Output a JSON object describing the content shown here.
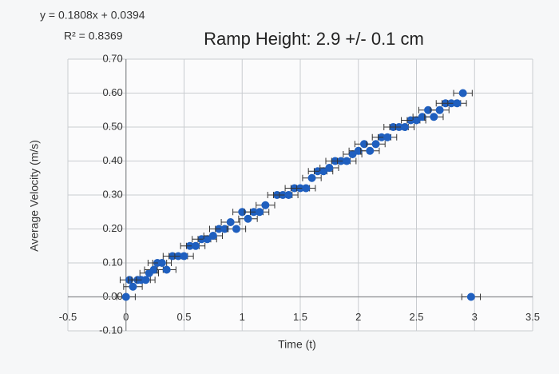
{
  "chart_data": {
    "type": "scatter",
    "title": "Ramp Height: 2.9 +/-  0.1 cm",
    "annotations": [
      "y = 0.1808x + 0.0394",
      "R² = 0.8369"
    ],
    "x_label": "Time (t)",
    "y_label": "Average Velocity (m/s)",
    "x": [
      0,
      0.03,
      0.06,
      0.1,
      0.13,
      0.17,
      0.2,
      0.24,
      0.27,
      0.31,
      0.35,
      0.4,
      0.45,
      0.5,
      0.55,
      0.6,
      0.65,
      0.7,
      0.75,
      0.8,
      0.85,
      0.9,
      0.95,
      1.0,
      1.05,
      1.1,
      1.15,
      1.2,
      1.3,
      1.35,
      1.4,
      1.45,
      1.5,
      1.55,
      1.6,
      1.65,
      1.7,
      1.75,
      1.8,
      1.85,
      1.9,
      1.95,
      2.0,
      2.05,
      2.1,
      2.15,
      2.2,
      2.25,
      2.3,
      2.35,
      2.4,
      2.45,
      2.5,
      2.55,
      2.6,
      2.65,
      2.7,
      2.75,
      2.8,
      2.85,
      2.9,
      2.97
    ],
    "values": [
      0,
      0.05,
      0.03,
      0.05,
      0.05,
      0.05,
      0.07,
      0.08,
      0.1,
      0.1,
      0.08,
      0.12,
      0.12,
      0.12,
      0.15,
      0.15,
      0.17,
      0.17,
      0.18,
      0.2,
      0.2,
      0.22,
      0.2,
      0.25,
      0.23,
      0.25,
      0.25,
      0.27,
      0.3,
      0.3,
      0.3,
      0.32,
      0.32,
      0.32,
      0.35,
      0.37,
      0.37,
      0.38,
      0.4,
      0.4,
      0.4,
      0.42,
      0.43,
      0.45,
      0.43,
      0.45,
      0.47,
      0.47,
      0.5,
      0.5,
      0.5,
      0.52,
      0.52,
      0.53,
      0.55,
      0.53,
      0.55,
      0.57,
      0.57,
      0.57,
      0.6,
      0.0
    ],
    "x_error": 0.08,
    "y_error": 0.01,
    "color": "#1f5fbf",
    "xlim": [
      -0.5,
      3.5
    ],
    "xticks": [
      -0.5,
      0,
      0.5,
      1,
      1.5,
      2,
      2.5,
      3,
      3.5
    ],
    "ylim": [
      -0.1,
      0.7
    ],
    "yticks": [
      {
        "value": -0.1,
        "label": "-0.10"
      },
      {
        "value": 0,
        "label": "0.00"
      },
      {
        "value": 0.1,
        "label": "0.10"
      },
      {
        "value": 0.2,
        "label": "0.20"
      },
      {
        "value": 0.3,
        "label": "0.30"
      },
      {
        "value": 0.4,
        "label": "0.40"
      },
      {
        "value": 0.5,
        "label": "0.50"
      },
      {
        "value": 0.6,
        "label": "0.60"
      },
      {
        "value": 0.7,
        "label": "0.70"
      }
    ],
    "grid": true
  }
}
